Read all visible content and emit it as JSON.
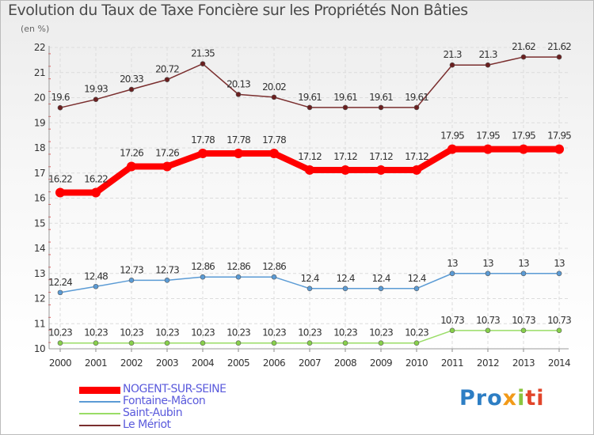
{
  "chart_data": {
    "type": "line",
    "title": "Evolution du Taux de Taxe Foncière sur les Propriétés Non Bâties",
    "ylabel": "(en %)",
    "xlabel": "",
    "ylim": [
      10,
      22
    ],
    "yticks": [
      10,
      11,
      12,
      13,
      14,
      15,
      16,
      17,
      18,
      19,
      20,
      21,
      22
    ],
    "categories": [
      "2000",
      "2001",
      "2002",
      "2003",
      "2004",
      "2005",
      "2006",
      "2007",
      "2008",
      "2009",
      "2010",
      "2011",
      "2012",
      "2013",
      "2014"
    ],
    "series": [
      {
        "name": "NOGENT-SUR-SEINE",
        "color": "#ff0000",
        "marker_color": "#ff0000",
        "labels": [
          "16.22",
          "16.22",
          "17.26",
          "17.26",
          "17.78",
          "17.78",
          "17.78",
          "17.12",
          "17.12",
          "17.12",
          "17.12",
          "17.95",
          "17.95",
          "17.95",
          "17.95"
        ],
        "values": [
          16.22,
          16.22,
          17.26,
          17.26,
          17.78,
          17.78,
          17.78,
          17.12,
          17.12,
          17.12,
          17.12,
          17.95,
          17.95,
          17.95,
          17.95
        ]
      },
      {
        "name": "Fontaine-Mâcon",
        "color": "#5b9bd5",
        "marker_color": "#5b9bd5",
        "labels": [
          "12.24",
          "12.48",
          "12.73",
          "12.73",
          "12.86",
          "12.86",
          "12.86",
          "12.4",
          "12.4",
          "12.4",
          "12.4",
          "13",
          "13",
          "13",
          "13"
        ],
        "values": [
          12.24,
          12.48,
          12.73,
          12.73,
          12.86,
          12.86,
          12.86,
          12.4,
          12.4,
          12.4,
          12.4,
          13,
          13,
          13,
          13
        ]
      },
      {
        "name": "Saint-Aubin",
        "color": "#99dd66",
        "marker_color": "#88d04b",
        "labels": [
          "10.23",
          "10.23",
          "10.23",
          "10.23",
          "10.23",
          "10.23",
          "10.23",
          "10.23",
          "10.23",
          "10.23",
          "10.23",
          "10.73",
          "10.73",
          "10.73",
          "10.73"
        ],
        "values": [
          10.23,
          10.23,
          10.23,
          10.23,
          10.23,
          10.23,
          10.23,
          10.23,
          10.23,
          10.23,
          10.23,
          10.73,
          10.73,
          10.73,
          10.73
        ]
      },
      {
        "name": "Le Mériot",
        "color": "#7a2e2e",
        "marker_color": "#6b1f1f",
        "labels": [
          "19.6",
          "19.93",
          "20.33",
          "20.72",
          "21.35",
          "20.13",
          "20.02",
          "19.61",
          "19.61",
          "19.61",
          "19.61",
          "21.3",
          "21.3",
          "21.62",
          "21.62"
        ],
        "values": [
          19.6,
          19.93,
          20.33,
          20.72,
          21.35,
          20.13,
          20.02,
          19.61,
          19.61,
          19.61,
          19.61,
          21.3,
          21.3,
          21.62,
          21.62
        ]
      }
    ],
    "grid": true,
    "legend_position": "bottom-left"
  },
  "brand": {
    "parts": [
      "Pro",
      "x",
      "i",
      "ti"
    ]
  }
}
